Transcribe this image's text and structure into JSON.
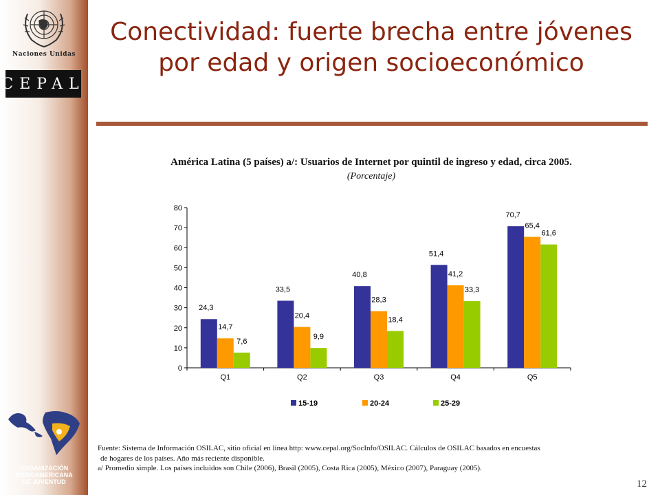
{
  "sidebar": {
    "org_name": "Naciones Unidas",
    "cepal": "CEPAL",
    "oij_lines": [
      "ORGANIZACIÓN",
      "IBEROAMERICANA",
      "DE JUVENTUD"
    ]
  },
  "slide": {
    "title": "Conectividad: fuerte brecha entre jóvenes por edad y origen socioeconómico",
    "page_number": "12"
  },
  "colors": {
    "title": "#8b2510",
    "rule": "#a8583a",
    "series": [
      "#333399",
      "#ff9900",
      "#99cc00"
    ]
  },
  "chart_data": {
    "type": "bar",
    "title": "América Latina (5 países) a/: Usuarios de Internet por quintil de ingreso y edad, circa 2005.",
    "subtitle": "(Porcentaje)",
    "categories": [
      "Q1",
      "Q2",
      "Q3",
      "Q4",
      "Q5"
    ],
    "series": [
      {
        "name": "15-19",
        "values": [
          24.3,
          33.5,
          40.8,
          51.4,
          70.7
        ],
        "labels": [
          "24,3",
          "33,5",
          "40,8",
          "51,4",
          "70,7"
        ]
      },
      {
        "name": "20-24",
        "values": [
          14.7,
          20.4,
          28.3,
          41.2,
          65.4
        ],
        "labels": [
          "14,7",
          "20,4",
          "28,3",
          "41,2",
          "65,4"
        ]
      },
      {
        "name": "25-29",
        "values": [
          7.6,
          9.9,
          18.4,
          33.3,
          61.6
        ],
        "labels": [
          "7,6",
          "9,9",
          "18,4",
          "33,3",
          "61,6"
        ]
      }
    ],
    "y_ticks": [
      "0",
      "10",
      "20",
      "30",
      "40",
      "50",
      "60",
      "70",
      "80"
    ],
    "ylim": [
      0,
      80
    ],
    "grid": false,
    "legend_position": "bottom"
  },
  "footnotes": {
    "source_line1": "Fuente: Sistema de Información OSILAC, sitio oficial en línea http: www.cepal.org/SocInfo/OSILAC. Cálculos de OSILAC basados en encuestas",
    "source_line2": "de hogares de los países. Año más reciente disponible.",
    "note_a": "a/ Promedio simple. Los países incluidos son Chile (2006), Brasil (2005), Costa Rica (2005), México (2007), Paraguay (2005)."
  }
}
